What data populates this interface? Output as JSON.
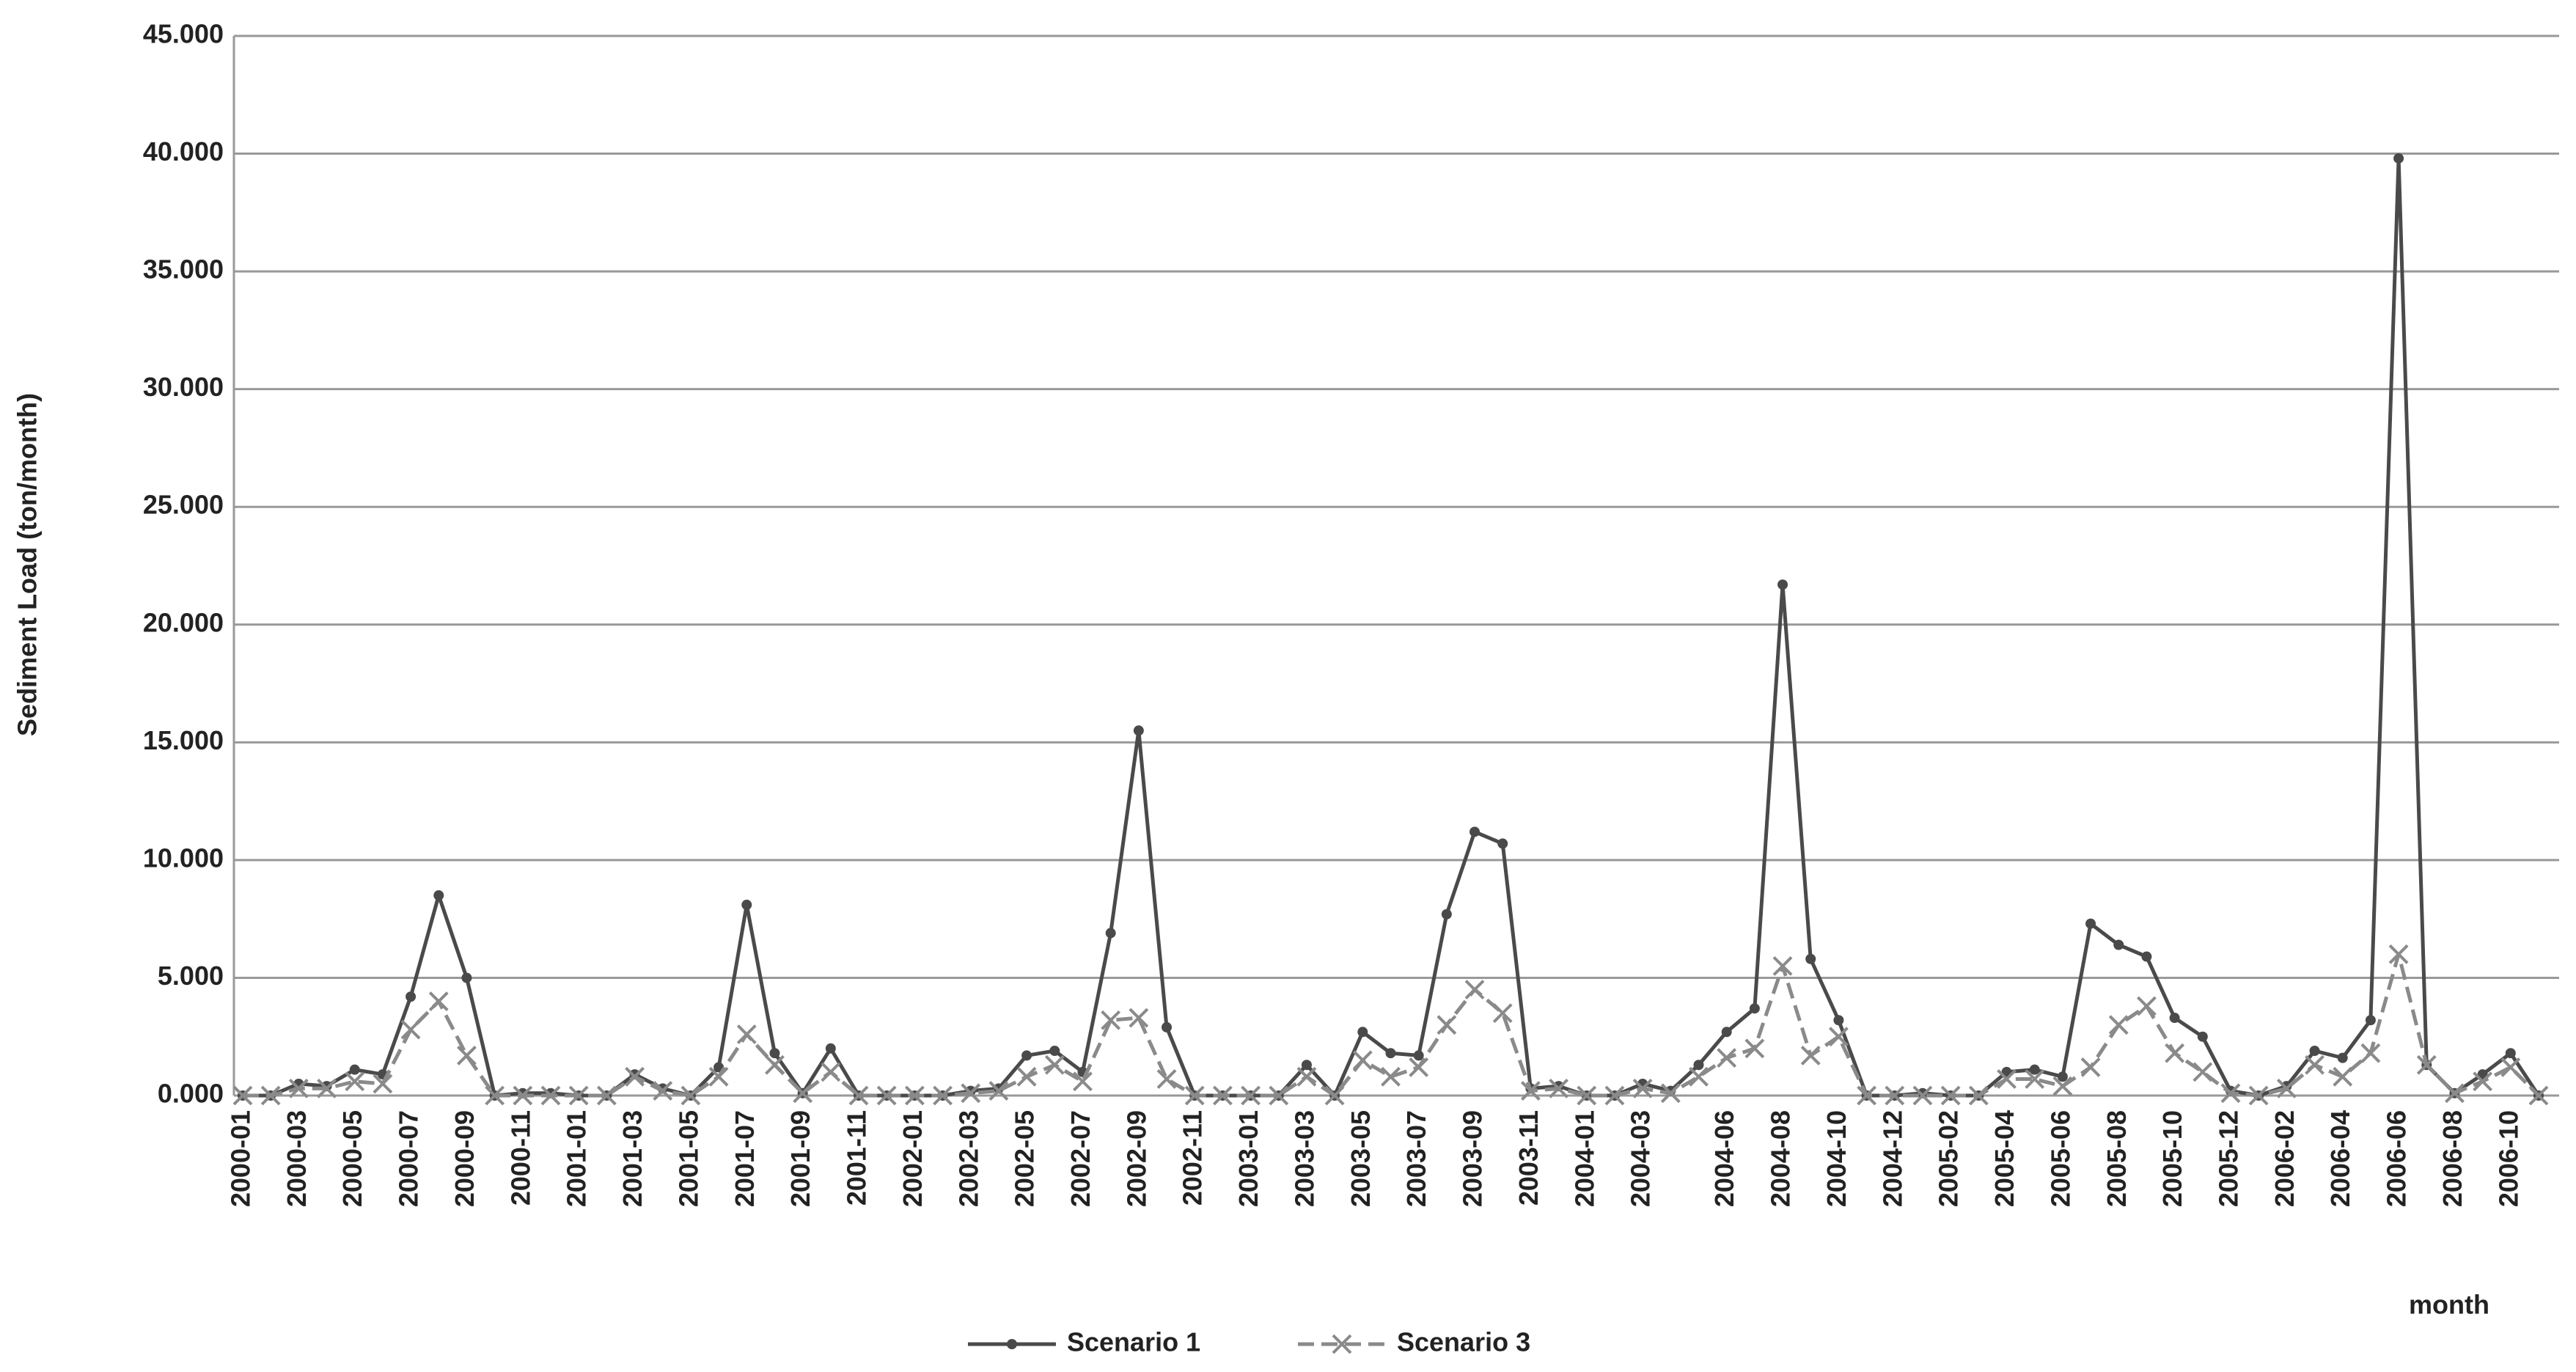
{
  "chart_data": {
    "type": "line",
    "y_label": "Sediment Load (ton/month)",
    "x_label": "month",
    "categories": [
      "2000-01",
      null,
      "2000-03",
      null,
      "2000-05",
      null,
      "2000-07",
      null,
      "2000-09",
      null,
      "2000-11",
      null,
      "2001-01",
      null,
      "2001-03",
      null,
      "2001-05",
      null,
      "2001-07",
      null,
      "2001-09",
      null,
      "2001-11",
      null,
      "2002-01",
      null,
      "2002-03",
      null,
      "2002-05",
      null,
      "2002-07",
      null,
      "2002-09",
      null,
      "2002-11",
      null,
      "2003-01",
      null,
      "2003-03",
      null,
      "2003-05",
      null,
      "2003-07",
      null,
      "2003-09",
      null,
      "2003-11",
      null,
      "2004-01",
      null,
      "2004-03",
      null,
      null,
      "2004-06",
      null,
      "2004-08",
      null,
      "2004-10",
      null,
      "2004-12",
      null,
      "2005-02",
      null,
      "2005-04",
      null,
      "2005-06",
      null,
      "2005-08",
      null,
      "2005-10",
      null,
      "2005-12",
      null,
      "2006-02",
      null,
      "2006-04",
      null,
      "2006-06",
      null,
      "2006-08",
      null,
      "2006-10",
      null
    ],
    "series": [
      {
        "name": "Scenario 1",
        "color": "#4a4a4a",
        "marker": "dot",
        "dashed": false,
        "values": [
          0,
          0,
          0.5,
          0.4,
          1.1,
          0.9,
          4.2,
          8.5,
          5.0,
          0,
          0.1,
          0.1,
          0,
          0,
          0.9,
          0.3,
          0,
          1.2,
          8.1,
          1.8,
          0.1,
          2.0,
          0,
          0,
          0,
          0,
          0.2,
          0.3,
          1.7,
          1.9,
          1.0,
          6.9,
          15.5,
          2.9,
          0,
          0,
          0,
          0,
          1.3,
          0,
          2.7,
          1.8,
          1.7,
          7.7,
          11.2,
          10.7,
          0.3,
          0.4,
          0,
          0,
          0.5,
          0.2,
          1.3,
          2.7,
          3.7,
          21.7,
          5.8,
          3.2,
          0,
          0,
          0.1,
          0,
          0,
          1.0,
          1.1,
          0.8,
          7.3,
          6.4,
          5.9,
          3.3,
          2.5,
          0.2,
          0,
          0.4,
          1.9,
          1.6,
          3.2,
          39.8,
          1.3,
          0.1,
          0.9,
          1.8,
          0
        ]
      },
      {
        "name": "Scenario 3",
        "color": "#8a8a8a",
        "marker": "x",
        "dashed": true,
        "values": [
          0,
          0,
          0.3,
          0.3,
          0.6,
          0.5,
          2.8,
          4.0,
          1.7,
          0,
          0,
          0,
          0,
          0,
          0.8,
          0.2,
          0,
          0.8,
          2.6,
          1.3,
          0.1,
          1.0,
          0,
          0,
          0,
          0,
          0.1,
          0.2,
          0.8,
          1.3,
          0.6,
          3.2,
          3.3,
          0.7,
          0,
          0,
          0,
          0,
          0.8,
          0,
          1.5,
          0.8,
          1.2,
          3.0,
          4.5,
          3.5,
          0.2,
          0.3,
          0,
          0,
          0.3,
          0.1,
          0.8,
          1.6,
          2.0,
          5.5,
          1.7,
          2.5,
          0,
          0,
          0,
          0,
          0,
          0.7,
          0.7,
          0.4,
          1.2,
          3.0,
          3.8,
          1.8,
          1.0,
          0.1,
          0,
          0.3,
          1.3,
          0.8,
          1.8,
          6.0,
          1.3,
          0.1,
          0.6,
          1.2,
          0
        ]
      }
    ],
    "ylim": [
      0,
      45
    ],
    "yticks": [
      {
        "value": 0,
        "label": "0.000"
      },
      {
        "value": 5,
        "label": "5.000"
      },
      {
        "value": 10,
        "label": "10.000"
      },
      {
        "value": 15,
        "label": "15.000"
      },
      {
        "value": 20,
        "label": "20.000"
      },
      {
        "value": 25,
        "label": "25.000"
      },
      {
        "value": 30,
        "label": "30.000"
      },
      {
        "value": 35,
        "label": "35.000"
      },
      {
        "value": 40,
        "label": "40.000"
      },
      {
        "value": 45,
        "label": "45.000"
      }
    ],
    "grid": true,
    "legend": "bottom"
  }
}
